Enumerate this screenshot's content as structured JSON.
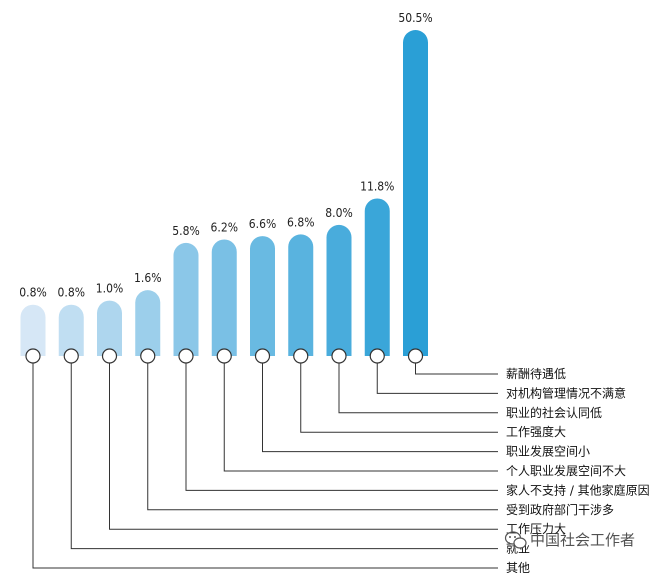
{
  "chart_data": {
    "type": "bar",
    "categories": [
      "其他",
      "就业",
      "工作压力大",
      "受到政府部门干涉多",
      "家人不支持 / 其他家庭原因",
      "个人职业发展空间不大",
      "职业发展空间小",
      "工作强度大",
      "职业的社会认同低",
      "对机构管理情况不满意",
      "薪酬待遇低"
    ],
    "values": [
      0.8,
      0.8,
      1.0,
      1.6,
      5.8,
      6.2,
      6.6,
      6.8,
      8.0,
      11.8,
      50.5
    ],
    "value_labels": [
      "0.8%",
      "0.8%",
      "1.0%",
      "1.6%",
      "5.8%",
      "6.2%",
      "6.6%",
      "6.8%",
      "8.0%",
      "11.8%",
      "50.5%"
    ],
    "unit": "%",
    "ylim": [
      0,
      50.5
    ],
    "grid": false,
    "legend": "none",
    "colors": {
      "bar_light": "#d6e7f6",
      "bar_dark": "#2a9fd6",
      "connector": "#333333",
      "marker_fill": "#ffffff",
      "marker_stroke": "#333333"
    }
  },
  "watermark": {
    "icon": "wechat-icon",
    "text": "中国社会工作者"
  }
}
